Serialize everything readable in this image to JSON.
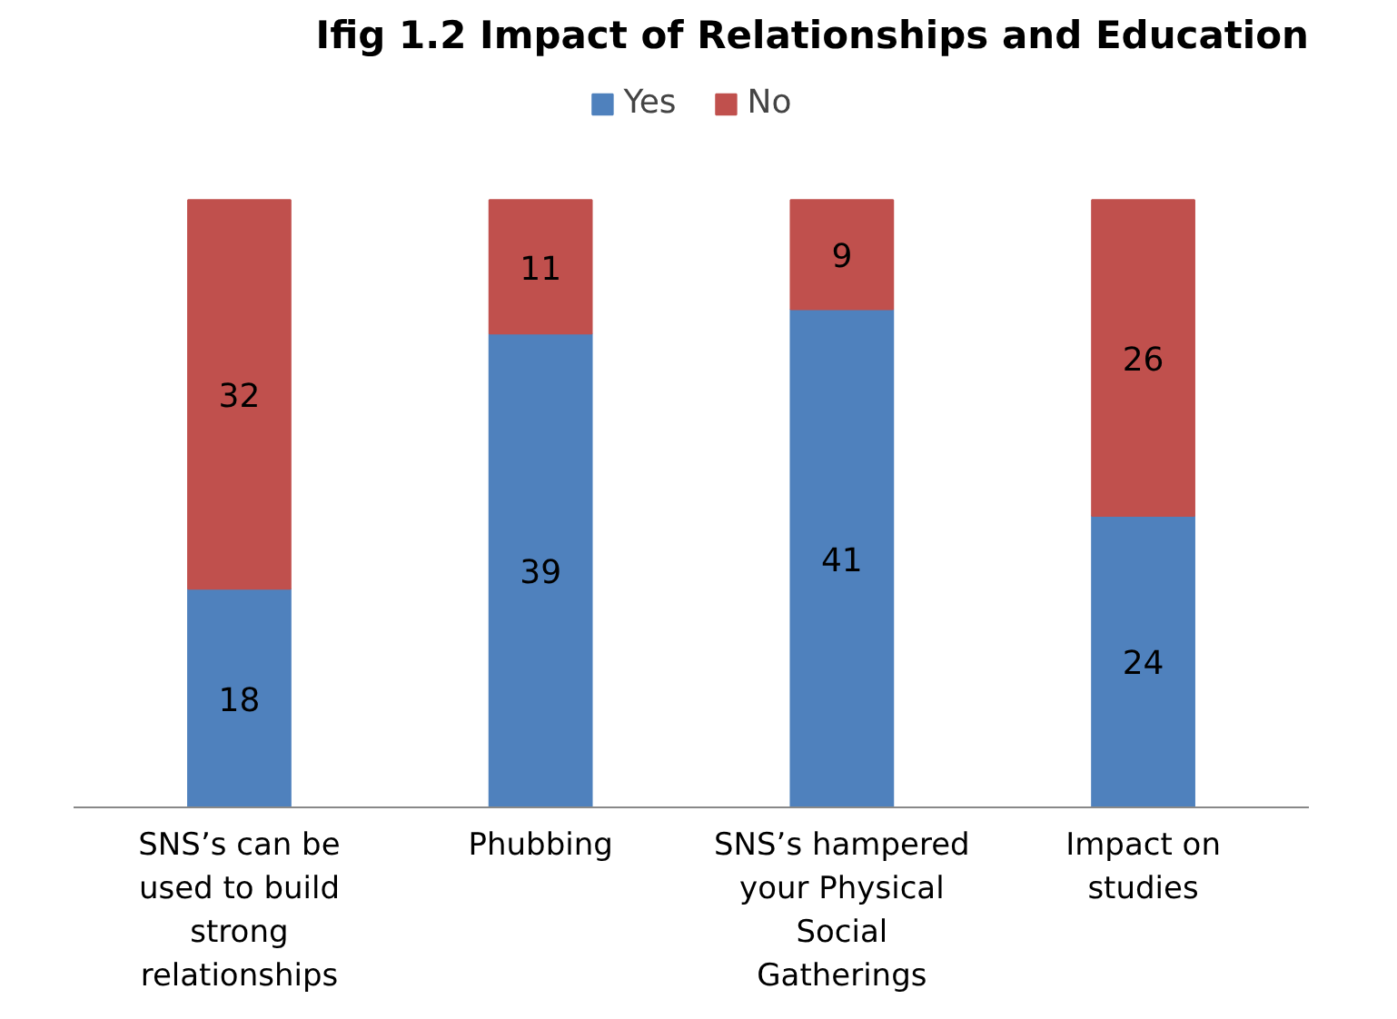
{
  "chart_data": {
    "type": "bar",
    "stacked": true,
    "title": "Ifig 1.2 Impact of Relationships and Education",
    "categories": [
      "SNS’s can be used to build strong relationships",
      "Phubbing",
      "SNS’s hampered your Physical Social Gatherings",
      "Impact on studies"
    ],
    "series": [
      {
        "name": "Yes",
        "color": "#4f81bd",
        "values": [
          18,
          39,
          41,
          24
        ]
      },
      {
        "name": "No",
        "color": "#c0504d",
        "values": [
          32,
          11,
          9,
          26
        ]
      }
    ],
    "data_labels": true,
    "legend": "top",
    "grid": false
  }
}
